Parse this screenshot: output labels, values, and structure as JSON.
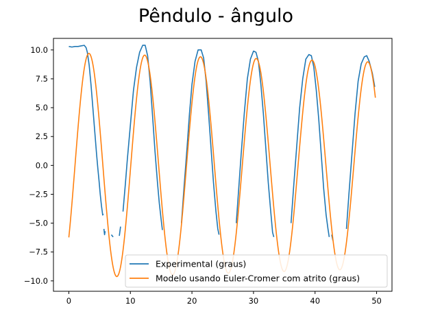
{
  "chart_data": {
    "type": "line",
    "title": "Pêndulo - ângulo",
    "xlabel": "",
    "ylabel": "",
    "xlim": [
      -2.5,
      52.5
    ],
    "ylim": [
      -10.9,
      11.0
    ],
    "xticks": [
      0,
      10,
      20,
      30,
      40,
      50
    ],
    "xtick_labels": [
      "0",
      "10",
      "20",
      "30",
      "40",
      "50"
    ],
    "yticks": [
      10.0,
      7.5,
      5.0,
      2.5,
      0.0,
      -2.5,
      -5.0,
      -7.5,
      -10.0
    ],
    "ytick_labels": [
      "10.0",
      "7.5",
      "5.0",
      "2.5",
      "0.0",
      "−2.5",
      "−5.0",
      "−7.5",
      "−10.0"
    ],
    "grid": false,
    "legend_position": "lower-right",
    "series": [
      {
        "name": "Experimental (graus)",
        "color": "#1f77b4",
        "segments": [
          [
            [
              0,
              10.3
            ],
            [
              0.5,
              10.25
            ],
            [
              1,
              10.3
            ],
            [
              1.5,
              10.3
            ],
            [
              2,
              10.35
            ],
            [
              2.5,
              10.4
            ],
            [
              2.8,
              10.2
            ],
            [
              3.0,
              9.8
            ],
            [
              3.3,
              8.7
            ],
            [
              3.6,
              7.0
            ],
            [
              3.9,
              5.0
            ],
            [
              4.2,
              3.0
            ],
            [
              4.5,
              1.0
            ],
            [
              4.7,
              -0.2
            ],
            [
              4.9,
              -1.3
            ],
            [
              5.1,
              -2.5
            ],
            [
              5.3,
              -3.5
            ],
            [
              5.5,
              -4.3
            ],
            [
              5.6,
              -4.2
            ]
          ],
          [
            [
              5.7,
              -5.5
            ],
            [
              5.8,
              -6.0
            ],
            [
              5.9,
              -5.7
            ]
          ],
          [
            [
              6.9,
              -6.0
            ],
            [
              7.2,
              -6.2
            ]
          ],
          [
            [
              8.2,
              -6.1
            ],
            [
              8.4,
              -5.3
            ]
          ],
          [
            [
              8.8,
              -4.0
            ],
            [
              9.2,
              -1.5
            ],
            [
              9.5,
              0.5
            ],
            [
              10,
              3.5
            ],
            [
              10.5,
              6.5
            ],
            [
              11,
              8.5
            ],
            [
              11.5,
              9.8
            ],
            [
              12,
              10.4
            ],
            [
              12.4,
              10.4
            ],
            [
              12.8,
              9.5
            ],
            [
              13.2,
              7.3
            ],
            [
              13.6,
              4.3
            ],
            [
              14,
              1.2
            ],
            [
              14.4,
              -1.5
            ],
            [
              14.7,
              -3.3
            ],
            [
              15,
              -4.7
            ],
            [
              15.2,
              -5.6
            ]
          ],
          [
            [
              18.3,
              -5.0
            ],
            [
              18.7,
              -2.0
            ],
            [
              19.2,
              1.5
            ],
            [
              19.6,
              4.5
            ],
            [
              20,
              7.0
            ],
            [
              20.5,
              9.0
            ],
            [
              21,
              10.0
            ],
            [
              21.5,
              10.0
            ],
            [
              21.9,
              9.3
            ],
            [
              22.3,
              7.3
            ],
            [
              22.7,
              4.5
            ],
            [
              23.1,
              1.5
            ],
            [
              23.5,
              -1.5
            ],
            [
              23.9,
              -4.0
            ],
            [
              24.2,
              -5.5
            ],
            [
              24.4,
              -6.0
            ]
          ],
          [
            [
              27.2,
              -5.0
            ],
            [
              27.6,
              -2.0
            ],
            [
              28,
              1.0
            ],
            [
              28.5,
              4.5
            ],
            [
              29,
              7.5
            ],
            [
              29.5,
              9.2
            ],
            [
              30,
              9.9
            ],
            [
              30.4,
              9.8
            ],
            [
              30.8,
              9.0
            ],
            [
              31.2,
              7.0
            ],
            [
              31.6,
              4.5
            ],
            [
              32,
              1.5
            ],
            [
              32.4,
              -1.5
            ],
            [
              32.8,
              -4.0
            ],
            [
              33.1,
              -5.8
            ],
            [
              33.3,
              -6.2
            ]
          ],
          [
            [
              36.1,
              -5.0
            ],
            [
              36.5,
              -2.0
            ],
            [
              37,
              1.5
            ],
            [
              37.5,
              5.0
            ],
            [
              38,
              7.5
            ],
            [
              38.5,
              9.2
            ],
            [
              39,
              9.6
            ],
            [
              39.4,
              9.5
            ],
            [
              39.8,
              8.5
            ],
            [
              40.2,
              6.5
            ],
            [
              40.6,
              4.0
            ],
            [
              41,
              1.0
            ],
            [
              41.4,
              -2.0
            ],
            [
              41.8,
              -4.3
            ],
            [
              42.1,
              -5.5
            ],
            [
              42.3,
              -6.2
            ]
          ],
          [
            [
              42.7,
              -6.0
            ],
            [
              42.9,
              -6.5
            ]
          ],
          [
            [
              45.1,
              -5.5
            ],
            [
              45.5,
              -2.5
            ],
            [
              46,
              1.0
            ],
            [
              46.5,
              4.5
            ],
            [
              47,
              7.3
            ],
            [
              47.5,
              8.8
            ],
            [
              48,
              9.4
            ],
            [
              48.4,
              9.5
            ],
            [
              48.8,
              9.0
            ],
            [
              49.3,
              8.0
            ],
            [
              49.7,
              6.8
            ]
          ]
        ]
      },
      {
        "name": "Modelo usando Euler-Cromer com atrito (graus)",
        "color": "#ff7f0e",
        "curve": {
          "amplitude_start": 9.75,
          "amplitude_end": 8.95,
          "period": 9.06,
          "phase_zero_x": 1.0,
          "x_start": 0,
          "x_end": 49.8
        }
      }
    ]
  }
}
